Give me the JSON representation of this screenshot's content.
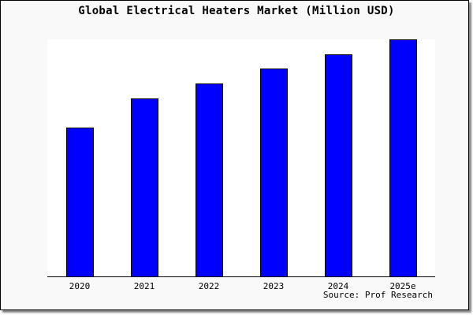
{
  "chart_data": {
    "type": "bar",
    "title": "Global Electrical Heaters Market (Million USD)",
    "categories": [
      "2020",
      "2021",
      "2022",
      "2023",
      "2024",
      "2025e"
    ],
    "values": [
      62.8,
      75.1,
      81.4,
      87.7,
      93.7,
      100
    ],
    "xlabel": "",
    "ylabel": "",
    "ylim": [
      0,
      100
    ],
    "grid": false,
    "bar_color": "#0000ff",
    "source": "Source: Prof Research"
  }
}
